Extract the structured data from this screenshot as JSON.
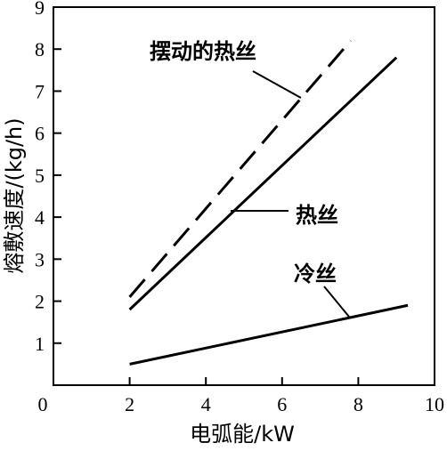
{
  "chart_data": {
    "type": "line",
    "xlabel": "电弧能/kW",
    "ylabel": "熔敷速度/(kg/h)",
    "xlim": [
      0,
      10
    ],
    "ylim": [
      0,
      9
    ],
    "xticks": [
      "0",
      "2",
      "4",
      "6",
      "8",
      "10"
    ],
    "yticks": [
      "1",
      "2",
      "3",
      "4",
      "5",
      "6",
      "7",
      "8",
      "9"
    ],
    "grid": false,
    "series": [
      {
        "name": "摆动的热丝",
        "style": "dashed",
        "x": [
          2.0,
          7.8
        ],
        "y": [
          2.1,
          8.2
        ]
      },
      {
        "name": "热丝",
        "style": "solid",
        "x": [
          2.0,
          9.0
        ],
        "y": [
          1.8,
          7.8
        ]
      },
      {
        "name": "冷丝",
        "style": "solid",
        "x": [
          2.0,
          9.3
        ],
        "y": [
          0.5,
          1.9
        ]
      }
    ],
    "annotations": [
      {
        "text": "摆动的热丝",
        "series": 0
      },
      {
        "text": "热丝",
        "series": 1
      },
      {
        "text": "冷丝",
        "series": 2
      }
    ]
  }
}
